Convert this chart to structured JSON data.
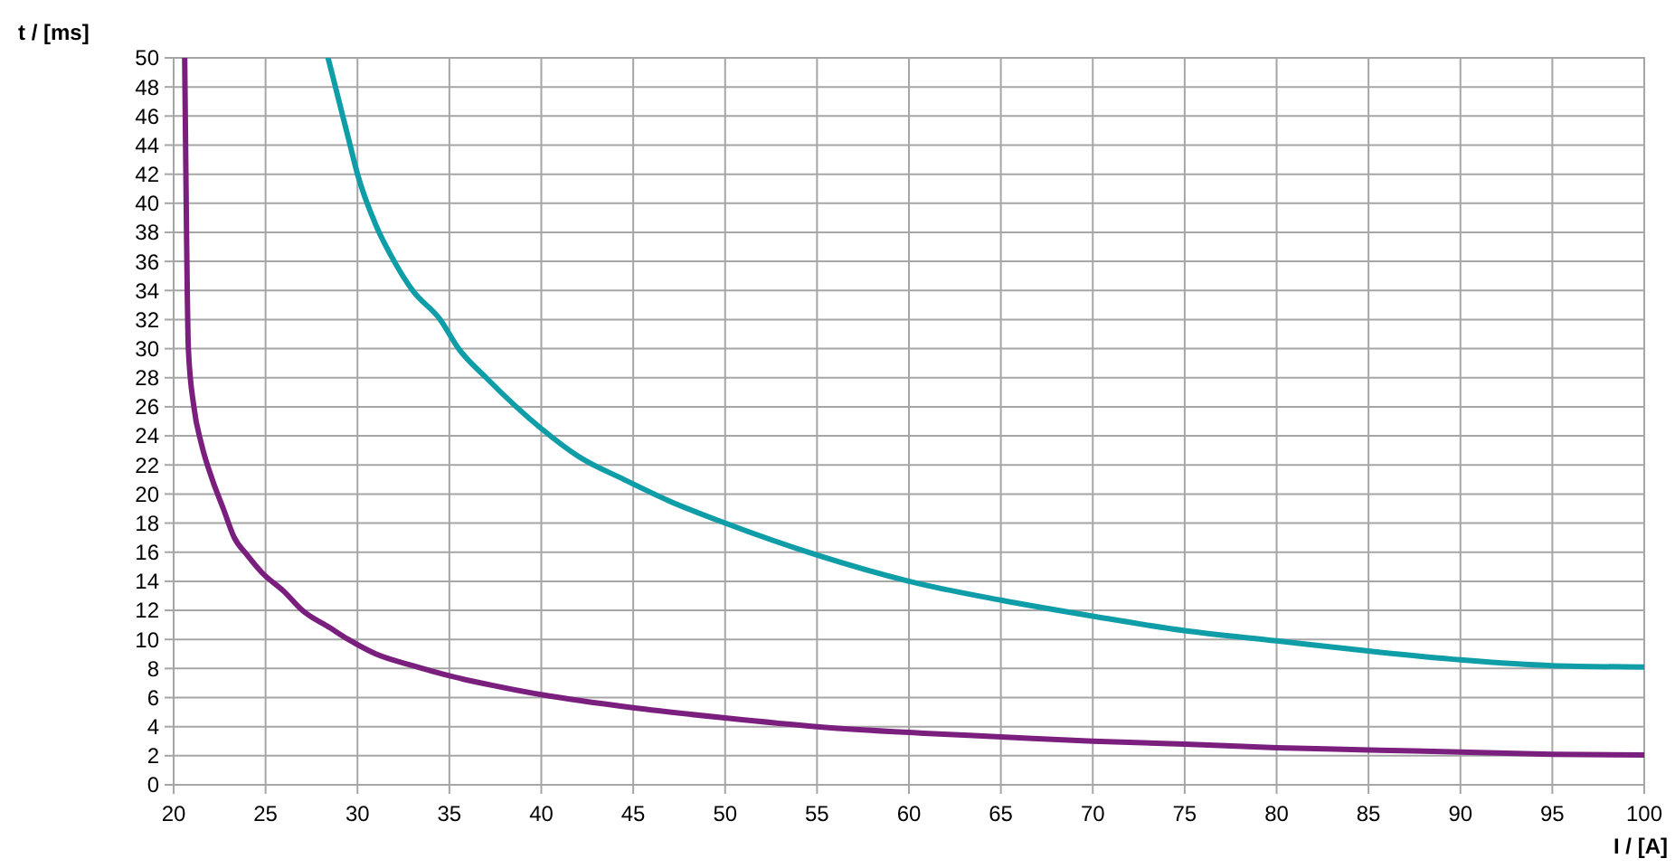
{
  "chart_data": {
    "type": "line",
    "xlabel": "I / [A]",
    "ylabel": "t / [ms]",
    "xlim": [
      20,
      100
    ],
    "xticks": [
      20,
      25,
      30,
      35,
      40,
      45,
      50,
      55,
      60,
      65,
      70,
      75,
      80,
      85,
      90,
      95,
      100
    ],
    "ylim": [
      0,
      50
    ],
    "yticks": [
      0,
      2,
      4,
      6,
      8,
      10,
      12,
      14,
      16,
      18,
      20,
      22,
      24,
      26,
      28,
      30,
      32,
      34,
      36,
      38,
      40,
      42,
      44,
      46,
      48,
      50
    ],
    "grid": true,
    "marker": "none",
    "line_style": "solid",
    "series": [
      {
        "color": "#7b1f7e",
        "x": [
          20.6,
          20.7,
          20.8,
          21.1,
          21.5,
          22.1,
          22.7,
          23.3,
          24.0,
          24.8,
          26,
          27,
          28.5,
          29.5,
          31,
          33,
          35,
          37.5,
          40,
          45,
          50,
          55,
          60,
          65,
          70,
          75,
          80,
          85,
          90,
          95,
          100
        ],
        "values": [
          50,
          38,
          30,
          26,
          23.5,
          21,
          19,
          17,
          15.8,
          14.6,
          13.3,
          12,
          10.8,
          10,
          9,
          8.2,
          7.5,
          6.8,
          6.2,
          5.3,
          4.6,
          4.0,
          3.6,
          3.3,
          3.0,
          2.8,
          2.55,
          2.4,
          2.25,
          2.1,
          2.05
        ]
      },
      {
        "color": "#0f9ea8",
        "x": [
          28.4,
          29,
          29.5,
          30,
          31,
          32,
          33,
          34.5,
          35.5,
          37,
          40,
          42,
          44.5,
          47,
          50,
          55,
          60,
          65,
          70,
          75,
          80,
          85,
          90,
          95,
          100
        ],
        "values": [
          50,
          47,
          44.5,
          42,
          38.5,
          36,
          34,
          32,
          30,
          28,
          24.5,
          22.6,
          21,
          19.5,
          18,
          15.8,
          14,
          12.7,
          11.6,
          10.6,
          9.9,
          9.2,
          8.6,
          8.2,
          8.1
        ]
      }
    ]
  }
}
